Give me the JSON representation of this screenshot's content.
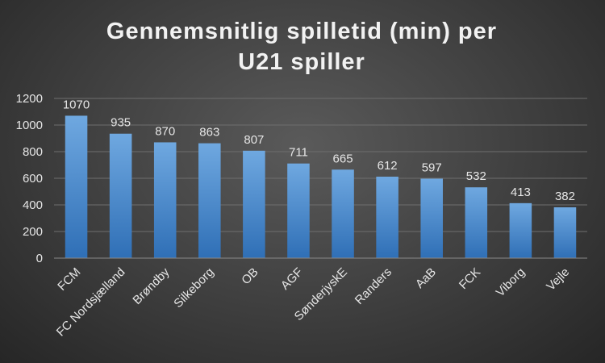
{
  "chart_data": {
    "type": "bar",
    "title_lines": [
      "Gennemsnitlig spilletid (min) per",
      "U21 spiller"
    ],
    "categories": [
      "FCM",
      "FC Nordsjælland",
      "Brøndby",
      "Silkeborg",
      "OB",
      "AGF",
      "SønderjyskE",
      "Randers",
      "AaB",
      "FCK",
      "Viborg",
      "Vejle"
    ],
    "values": [
      1070,
      935,
      870,
      863,
      807,
      711,
      665,
      612,
      597,
      532,
      413,
      382
    ],
    "yticks": [
      "0",
      "200",
      "400",
      "600",
      "800",
      "1000",
      "1200"
    ],
    "ylim": [
      0,
      1200
    ],
    "grid": true,
    "legend": "none",
    "colors": {
      "bar_top": "#6fa8e0",
      "bar_bottom": "#2f6fb6"
    }
  }
}
